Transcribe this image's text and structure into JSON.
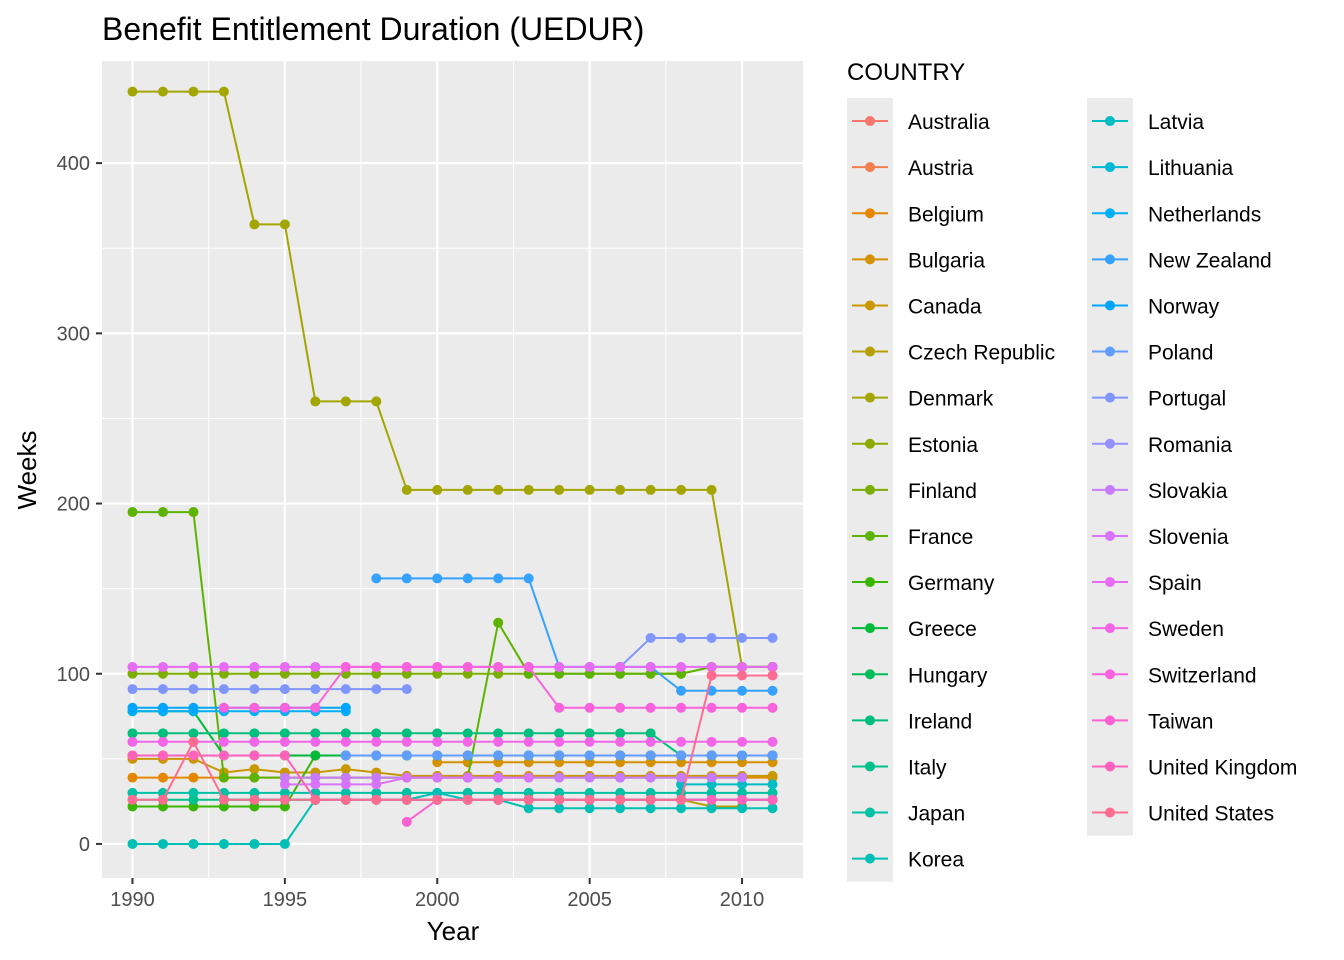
{
  "chart_data": {
    "type": "line",
    "title": "Benefit Entitlement Duration (UEDUR)",
    "xlabel": "Year",
    "ylabel": "Weeks",
    "xlim": [
      1989,
      2012
    ],
    "ylim": [
      -20,
      460
    ],
    "x_ticks": [
      1990,
      1995,
      2000,
      2005,
      2010
    ],
    "y_ticks": [
      0,
      100,
      200,
      300,
      400
    ],
    "grid": true,
    "legend": {
      "title": "COUNTRY",
      "placement": "right",
      "columns": 2
    },
    "x": [
      1990,
      1991,
      1992,
      1993,
      1994,
      1995,
      1996,
      1997,
      1998,
      1999,
      2000,
      2001,
      2002,
      2003,
      2004,
      2005,
      2006,
      2007,
      2008,
      2009,
      2010,
      2011
    ],
    "series": [
      {
        "name": "Australia",
        "color": "#F8766D",
        "values": [
          null,
          null,
          null,
          null,
          null,
          null,
          null,
          null,
          null,
          null,
          null,
          null,
          null,
          null,
          null,
          null,
          null,
          null,
          null,
          null,
          null,
          null
        ]
      },
      {
        "name": "Austria",
        "color": "#F07E4E",
        "values": [
          52,
          52,
          52,
          52,
          52,
          52,
          52,
          52,
          52,
          52,
          52,
          52,
          52,
          52,
          52,
          52,
          52,
          52,
          52,
          52,
          52,
          52
        ]
      },
      {
        "name": "Belgium",
        "color": "#E58700",
        "values": [
          39,
          39,
          39,
          39,
          39,
          39,
          39,
          39,
          39,
          39,
          39,
          39,
          39,
          39,
          39,
          39,
          39,
          39,
          39,
          39,
          39,
          39
        ]
      },
      {
        "name": "Bulgaria",
        "color": "#D69100",
        "values": [
          null,
          null,
          null,
          null,
          null,
          null,
          null,
          null,
          null,
          null,
          48,
          48,
          48,
          48,
          48,
          48,
          48,
          48,
          48,
          48,
          48,
          48
        ]
      },
      {
        "name": "Canada",
        "color": "#C99800",
        "values": [
          50,
          50,
          50,
          42,
          44,
          42,
          42,
          44,
          42,
          40,
          40,
          40,
          40,
          40,
          40,
          40,
          40,
          40,
          40,
          40,
          40,
          40
        ]
      },
      {
        "name": "Czech Republic",
        "color": "#B79F00",
        "values": [
          null,
          null,
          null,
          null,
          null,
          null,
          26,
          26,
          26,
          26,
          26,
          26,
          26,
          26,
          26,
          26,
          26,
          26,
          26,
          22,
          22,
          null
        ]
      },
      {
        "name": "Denmark",
        "color": "#A3A500",
        "values": [
          442,
          442,
          442,
          442,
          364,
          364,
          260,
          260,
          260,
          208,
          208,
          208,
          208,
          208,
          208,
          208,
          208,
          208,
          208,
          208,
          104,
          104
        ]
      },
      {
        "name": "Estonia",
        "color": "#8CAB00",
        "values": [
          null,
          null,
          null,
          null,
          null,
          null,
          null,
          null,
          null,
          null,
          null,
          null,
          null,
          null,
          null,
          null,
          null,
          null,
          null,
          null,
          null,
          null
        ]
      },
      {
        "name": "Finland",
        "color": "#7CAE00",
        "values": [
          100,
          100,
          100,
          100,
          100,
          100,
          100,
          100,
          100,
          100,
          100,
          100,
          100,
          100,
          100,
          100,
          100,
          100,
          100,
          104,
          104,
          104
        ]
      },
      {
        "name": "France",
        "color": "#5EB300",
        "values": [
          195,
          195,
          195,
          39,
          39,
          39,
          39,
          39,
          39,
          39,
          39,
          39,
          130,
          100,
          100,
          100,
          100,
          100,
          100,
          104,
          104,
          104
        ]
      },
      {
        "name": "Germany",
        "color": "#39B600",
        "values": [
          22,
          22,
          22,
          22,
          22,
          22,
          52,
          52,
          52,
          52,
          52,
          52,
          52,
          52,
          52,
          52,
          52,
          52,
          52,
          52,
          52,
          52
        ]
      },
      {
        "name": "Greece",
        "color": "#00BA38",
        "values": [
          78,
          78,
          78,
          52,
          52,
          52,
          52,
          52,
          52,
          52,
          52,
          52,
          52,
          52,
          52,
          52,
          52,
          52,
          52,
          52,
          52,
          52
        ]
      },
      {
        "name": "Hungary",
        "color": "#00BC59",
        "values": [
          null,
          null,
          null,
          26,
          26,
          26,
          26,
          26,
          26,
          26,
          26,
          26,
          26,
          26,
          26,
          26,
          26,
          26,
          26,
          26,
          26,
          26
        ]
      },
      {
        "name": "Ireland",
        "color": "#00BF7D",
        "values": [
          65,
          65,
          65,
          65,
          65,
          65,
          65,
          65,
          65,
          65,
          65,
          65,
          65,
          65,
          65,
          65,
          65,
          65,
          52,
          52,
          52,
          52
        ]
      },
      {
        "name": "Italy",
        "color": "#00C08B",
        "values": [
          26,
          26,
          26,
          26,
          26,
          26,
          26,
          26,
          26,
          26,
          26,
          26,
          26,
          26,
          26,
          26,
          26,
          26,
          26,
          26,
          26,
          26
        ]
      },
      {
        "name": "Japan",
        "color": "#00C1A3",
        "values": [
          30,
          30,
          30,
          30,
          30,
          30,
          30,
          30,
          30,
          30,
          30,
          30,
          30,
          30,
          30,
          30,
          30,
          30,
          30,
          30,
          30,
          30
        ]
      },
      {
        "name": "Korea",
        "color": "#00BFB5",
        "values": [
          0,
          0,
          0,
          0,
          0,
          0,
          26,
          26,
          26,
          26,
          30,
          26,
          26,
          21,
          21,
          21,
          21,
          21,
          21,
          21,
          21,
          21
        ]
      },
      {
        "name": "Latvia",
        "color": "#00BDC4",
        "values": [
          null,
          null,
          null,
          null,
          null,
          null,
          null,
          null,
          null,
          null,
          null,
          null,
          null,
          null,
          null,
          null,
          null,
          null,
          35,
          35,
          35,
          35
        ]
      },
      {
        "name": "Lithuania",
        "color": "#00B8D6",
        "values": [
          null,
          null,
          null,
          null,
          null,
          null,
          null,
          null,
          null,
          null,
          26,
          26,
          26,
          26,
          26,
          26,
          26,
          26,
          26,
          26,
          26,
          26
        ]
      },
      {
        "name": "Netherlands",
        "color": "#00B0F6",
        "values": [
          78,
          78,
          78,
          78,
          78,
          78,
          78,
          78,
          null,
          null,
          null,
          null,
          null,
          null,
          null,
          null,
          null,
          null,
          null,
          null,
          null,
          null
        ]
      },
      {
        "name": "New Zealand",
        "color": "#35A2FF",
        "values": [
          null,
          null,
          null,
          null,
          null,
          null,
          null,
          null,
          156,
          156,
          156,
          156,
          156,
          156,
          104,
          104,
          104,
          104,
          90,
          90,
          90,
          90
        ]
      },
      {
        "name": "Norway",
        "color": "#00A5FF",
        "values": [
          80,
          80,
          80,
          80,
          80,
          80,
          80,
          80,
          null,
          null,
          null,
          null,
          null,
          null,
          null,
          null,
          null,
          null,
          null,
          null,
          null,
          null
        ]
      },
      {
        "name": "Poland",
        "color": "#619CFF",
        "values": [
          null,
          null,
          null,
          null,
          null,
          null,
          null,
          52,
          52,
          52,
          52,
          52,
          52,
          52,
          52,
          52,
          52,
          52,
          52,
          52,
          52,
          52
        ]
      },
      {
        "name": "Portugal",
        "color": "#7F96FF",
        "values": [
          91,
          91,
          91,
          91,
          91,
          91,
          91,
          91,
          91,
          91,
          null,
          null,
          null,
          null,
          null,
          null,
          104,
          121,
          121,
          121,
          121,
          121
        ]
      },
      {
        "name": "Romania",
        "color": "#9590FF",
        "values": [
          null,
          null,
          null,
          null,
          null,
          null,
          null,
          null,
          null,
          null,
          null,
          null,
          null,
          null,
          null,
          null,
          null,
          null,
          null,
          null,
          null,
          null
        ]
      },
      {
        "name": "Slovakia",
        "color": "#C77CFF",
        "values": [
          null,
          null,
          null,
          null,
          null,
          39,
          39,
          39,
          39,
          39,
          39,
          39,
          39,
          39,
          39,
          39,
          39,
          39,
          39,
          39,
          39,
          null
        ]
      },
      {
        "name": "Slovenia",
        "color": "#D973FC",
        "values": [
          null,
          null,
          null,
          null,
          null,
          35,
          35,
          35,
          35,
          39,
          39,
          39,
          39,
          39,
          null,
          null,
          null,
          null,
          null,
          null,
          null,
          null
        ]
      },
      {
        "name": "Spain",
        "color": "#E76BF3",
        "values": [
          104,
          104,
          104,
          104,
          104,
          104,
          104,
          104,
          104,
          104,
          104,
          104,
          104,
          104,
          104,
          104,
          104,
          104,
          104,
          104,
          104,
          104
        ]
      },
      {
        "name": "Sweden",
        "color": "#F265E7",
        "values": [
          60,
          60,
          60,
          60,
          60,
          60,
          60,
          60,
          60,
          60,
          60,
          60,
          60,
          60,
          60,
          60,
          60,
          60,
          60,
          60,
          60,
          60
        ]
      },
      {
        "name": "Switzerland",
        "color": "#F962DD",
        "values": [
          null,
          null,
          null,
          80,
          80,
          80,
          80,
          104,
          104,
          104,
          104,
          104,
          104,
          104,
          80,
          80,
          80,
          80,
          80,
          80,
          80,
          80
        ]
      },
      {
        "name": "Taiwan",
        "color": "#FD61D1",
        "values": [
          null,
          null,
          null,
          null,
          null,
          null,
          null,
          null,
          null,
          13,
          26,
          26,
          26,
          26,
          26,
          26,
          26,
          26,
          26,
          26,
          26,
          26
        ]
      },
      {
        "name": "United Kingdom",
        "color": "#FF62BC",
        "values": [
          52,
          52,
          52,
          52,
          52,
          52,
          26,
          26,
          26,
          26,
          26,
          26,
          26,
          26,
          26,
          26,
          26,
          26,
          26,
          26,
          26,
          26
        ]
      },
      {
        "name": "United States",
        "color": "#FF6C91",
        "values": [
          26,
          26,
          60,
          26,
          26,
          26,
          26,
          26,
          26,
          26,
          26,
          26,
          26,
          26,
          26,
          26,
          26,
          26,
          26,
          99,
          99,
          99
        ]
      }
    ]
  }
}
